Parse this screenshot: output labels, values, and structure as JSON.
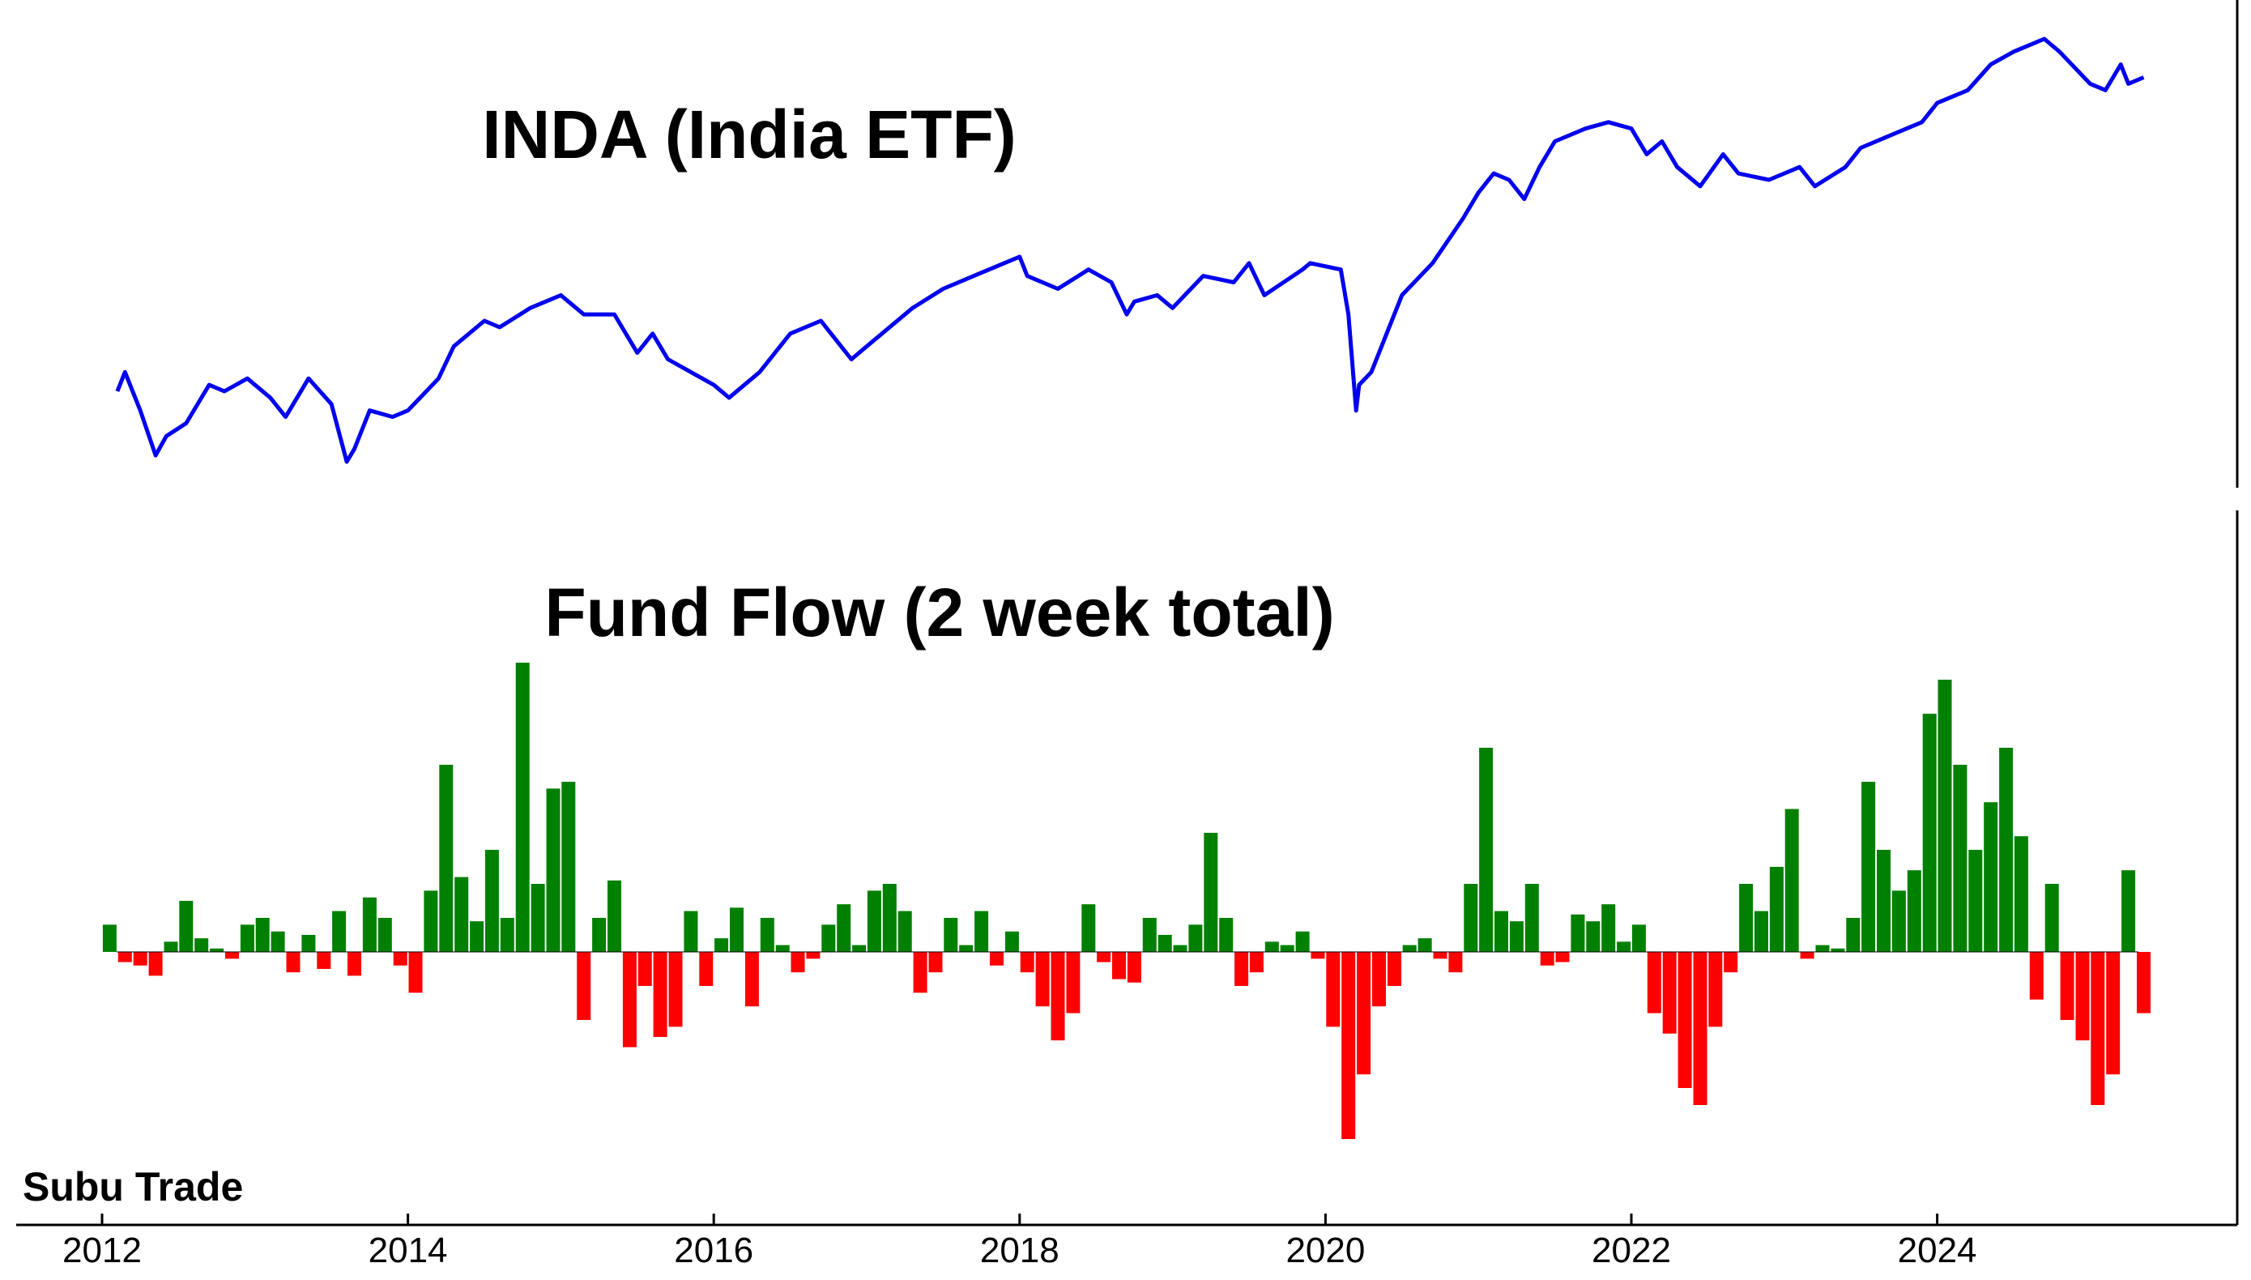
{
  "chart_data": [
    {
      "type": "line",
      "title": "INDA (India ETF)",
      "color": "#0000ee",
      "xlim": [
        2012,
        2026
      ],
      "x_ticks": [
        2012,
        2014,
        2016,
        2018,
        2020,
        2022,
        2024
      ],
      "x_tick_labels": [
        "2012",
        "2014",
        "2016",
        "2018",
        "2020",
        "2022",
        "2024"
      ],
      "y_axis_labels": "none",
      "grid": false,
      "x": [
        2012.1,
        2012.15,
        2012.25,
        2012.35,
        2012.42,
        2012.55,
        2012.7,
        2012.8,
        2012.95,
        2013.1,
        2013.2,
        2013.35,
        2013.5,
        2013.6,
        2013.65,
        2013.75,
        2013.9,
        2014.0,
        2014.2,
        2014.3,
        2014.5,
        2014.6,
        2014.8,
        2015.0,
        2015.15,
        2015.35,
        2015.5,
        2015.6,
        2015.7,
        2015.85,
        2016.0,
        2016.1,
        2016.3,
        2016.5,
        2016.7,
        2016.8,
        2016.9,
        2017.0,
        2017.3,
        2017.5,
        2017.7,
        2018.0,
        2018.05,
        2018.25,
        2018.45,
        2018.6,
        2018.7,
        2018.75,
        2018.9,
        2019.0,
        2019.2,
        2019.4,
        2019.5,
        2019.6,
        2019.85,
        2019.9,
        2020.1,
        2020.15,
        2020.2,
        2020.22,
        2020.3,
        2020.4,
        2020.5,
        2020.7,
        2020.9,
        2021.0,
        2021.1,
        2021.2,
        2021.3,
        2021.4,
        2021.5,
        2021.7,
        2021.85,
        2022.0,
        2022.1,
        2022.2,
        2022.3,
        2022.45,
        2022.6,
        2022.7,
        2022.9,
        2023.1,
        2023.2,
        2023.4,
        2023.5,
        2023.7,
        2023.9,
        2024.0,
        2024.2,
        2024.35,
        2024.5,
        2024.6,
        2024.7,
        2024.8,
        2025.0,
        2025.1,
        2025.2,
        2025.25,
        2025.35
      ],
      "y": [
        53,
        56,
        50,
        43,
        46,
        48,
        54,
        53,
        55,
        52,
        49,
        55,
        51,
        42,
        44,
        50,
        49,
        50,
        55,
        60,
        64,
        63,
        66,
        68,
        65,
        65,
        59,
        62,
        58,
        56,
        54,
        52,
        56,
        62,
        64,
        61,
        58,
        60,
        66,
        69,
        71,
        74,
        71,
        69,
        72,
        70,
        65,
        67,
        68,
        66,
        71,
        70,
        73,
        68,
        72,
        73,
        72,
        65,
        50,
        54,
        56,
        62,
        68,
        73,
        80,
        84,
        87,
        86,
        83,
        88,
        92,
        94,
        95,
        94,
        90,
        92,
        88,
        85,
        90,
        87,
        86,
        88,
        85,
        88,
        91,
        93,
        95,
        98,
        100,
        104,
        106,
        107,
        108,
        106,
        101,
        100,
        104,
        101,
        102
      ]
    },
    {
      "type": "bar",
      "title": "Fund Flow (2 week total)",
      "positive_color": "#008000",
      "negative_color": "#ff0000",
      "xlim": [
        2012,
        2026
      ],
      "x_ticks": [
        2012,
        2014,
        2016,
        2018,
        2020,
        2022,
        2024
      ],
      "x_tick_labels": [
        "2012",
        "2014",
        "2016",
        "2018",
        "2020",
        "2022",
        "2024"
      ],
      "y_axis_labels": "none",
      "grid": false,
      "x": [
        2012.05,
        2012.15,
        2012.25,
        2012.35,
        2012.45,
        2012.55,
        2012.65,
        2012.75,
        2012.85,
        2012.95,
        2013.05,
        2013.15,
        2013.25,
        2013.35,
        2013.45,
        2013.55,
        2013.65,
        2013.75,
        2013.85,
        2013.95,
        2014.05,
        2014.15,
        2014.25,
        2014.35,
        2014.45,
        2014.55,
        2014.65,
        2014.75,
        2014.85,
        2014.95,
        2015.05,
        2015.15,
        2015.25,
        2015.35,
        2015.45,
        2015.55,
        2015.65,
        2015.75,
        2015.85,
        2015.95,
        2016.05,
        2016.15,
        2016.25,
        2016.35,
        2016.45,
        2016.55,
        2016.65,
        2016.75,
        2016.85,
        2016.95,
        2017.05,
        2017.15,
        2017.25,
        2017.35,
        2017.45,
        2017.55,
        2017.65,
        2017.75,
        2017.85,
        2017.95,
        2018.05,
        2018.15,
        2018.25,
        2018.35,
        2018.45,
        2018.55,
        2018.65,
        2018.75,
        2018.85,
        2018.95,
        2019.05,
        2019.15,
        2019.25,
        2019.35,
        2019.45,
        2019.55,
        2019.65,
        2019.75,
        2019.85,
        2019.95,
        2020.05,
        2020.15,
        2020.25,
        2020.35,
        2020.45,
        2020.55,
        2020.65,
        2020.75,
        2020.85,
        2020.95,
        2021.05,
        2021.15,
        2021.25,
        2021.35,
        2021.45,
        2021.55,
        2021.65,
        2021.75,
        2021.85,
        2021.95,
        2022.05,
        2022.15,
        2022.25,
        2022.35,
        2022.45,
        2022.55,
        2022.65,
        2022.75,
        2022.85,
        2022.95,
        2023.05,
        2023.15,
        2023.25,
        2023.35,
        2023.45,
        2023.55,
        2023.65,
        2023.75,
        2023.85,
        2023.95,
        2024.05,
        2024.15,
        2024.25,
        2024.35,
        2024.45,
        2024.55,
        2024.65,
        2024.75,
        2024.85,
        2024.95,
        2025.05,
        2025.15,
        2025.25,
        2025.35
      ],
      "values": [
        8,
        -3,
        -4,
        -7,
        3,
        15,
        4,
        1,
        -2,
        8,
        10,
        6,
        -6,
        5,
        -5,
        12,
        -7,
        16,
        10,
        -4,
        -12,
        18,
        55,
        22,
        9,
        30,
        10,
        85,
        20,
        48,
        50,
        -20,
        10,
        21,
        -28,
        -10,
        -25,
        -22,
        12,
        -10,
        4,
        13,
        -16,
        10,
        2,
        -6,
        -2,
        8,
        14,
        2,
        18,
        20,
        12,
        -12,
        -6,
        10,
        2,
        12,
        -4,
        6,
        -6,
        -16,
        -26,
        -18,
        14,
        -3,
        -8,
        -9,
        10,
        5,
        2,
        8,
        35,
        10,
        -10,
        -6,
        3,
        2,
        6,
        -2,
        -22,
        -55,
        -36,
        -16,
        -10,
        2,
        4,
        -2,
        -6,
        20,
        60,
        12,
        9,
        20,
        -4,
        -3,
        11,
        9,
        14,
        3,
        8,
        -18,
        -24,
        -40,
        -45,
        -22,
        -6,
        20,
        12,
        25,
        42,
        -2,
        2,
        1,
        10,
        50,
        30,
        18,
        24,
        70,
        80,
        55,
        30,
        44,
        60,
        34,
        -14,
        20,
        -20,
        -26,
        -45,
        -36,
        24,
        -18
      ]
    }
  ],
  "watermark": "Subu Trade"
}
